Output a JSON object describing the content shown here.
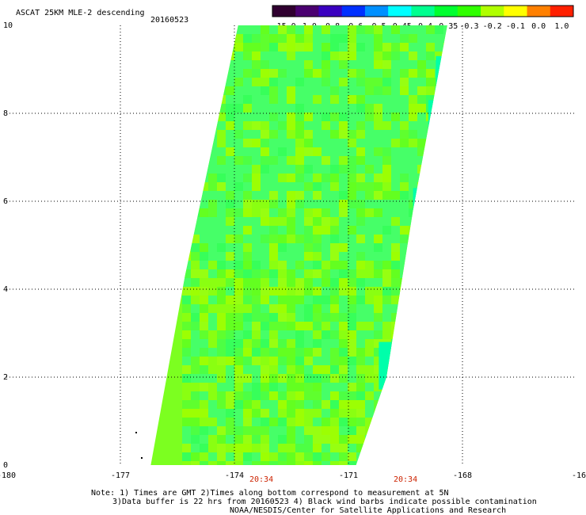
{
  "header": {
    "title": "ASCAT 25KM MLE-2 descending",
    "date": "20160523"
  },
  "colorbar": {
    "tick_labels": [
      "-15.0",
      "-1.0",
      "-0.8",
      "-0.6",
      "-0.5",
      "-0.45",
      "-0.4",
      "-0.35",
      "-0.3",
      "-0.2",
      "-0.1",
      "0.0",
      "1.0"
    ],
    "colors": [
      "#300030",
      "#4a0070",
      "#3a00c0",
      "#0030ff",
      "#0090ff",
      "#00ffff",
      "#00ff90",
      "#00ff30",
      "#30ff00",
      "#b0ff00",
      "#ffff00",
      "#ff8000",
      "#ff2000"
    ]
  },
  "axes": {
    "x_ticks": [
      "-180",
      "-177",
      "-174",
      "-171",
      "-168",
      "-16"
    ],
    "y_ticks": [
      "10",
      "8",
      "6",
      "4",
      "2",
      "0"
    ],
    "time_labels": [
      "20:34",
      "20:34"
    ],
    "xlim": [
      -180,
      -165
    ],
    "ylim": [
      0,
      10
    ]
  },
  "notes": {
    "line1": "Note: 1) Times are GMT 2)Times along bottom correspond to measurement at 5N",
    "line2": "3)Data buffer is 22 hrs from 20160523 4) Black wind barbs indicate possible contamination",
    "line3": "NOAA/NESDIS/Center for Satellite Applications and Research"
  },
  "swath": {
    "fill_color": "#7cff20",
    "edge_color": "#00ffaa",
    "strong_color": "#0000ff",
    "extreme_color": "#40005a",
    "corners": [
      {
        "lon": -173.9,
        "lat": 10.0
      },
      {
        "lon": -168.4,
        "lat": 10.0
      },
      {
        "lon": -169.3,
        "lat": 5.8
      },
      {
        "lon": -170.0,
        "lat": 2.0
      },
      {
        "lon": -170.8,
        "lat": 0.0
      },
      {
        "lon": -176.2,
        "lat": 0.0
      },
      {
        "lon": -175.3,
        "lat": 4.3
      }
    ]
  }
}
